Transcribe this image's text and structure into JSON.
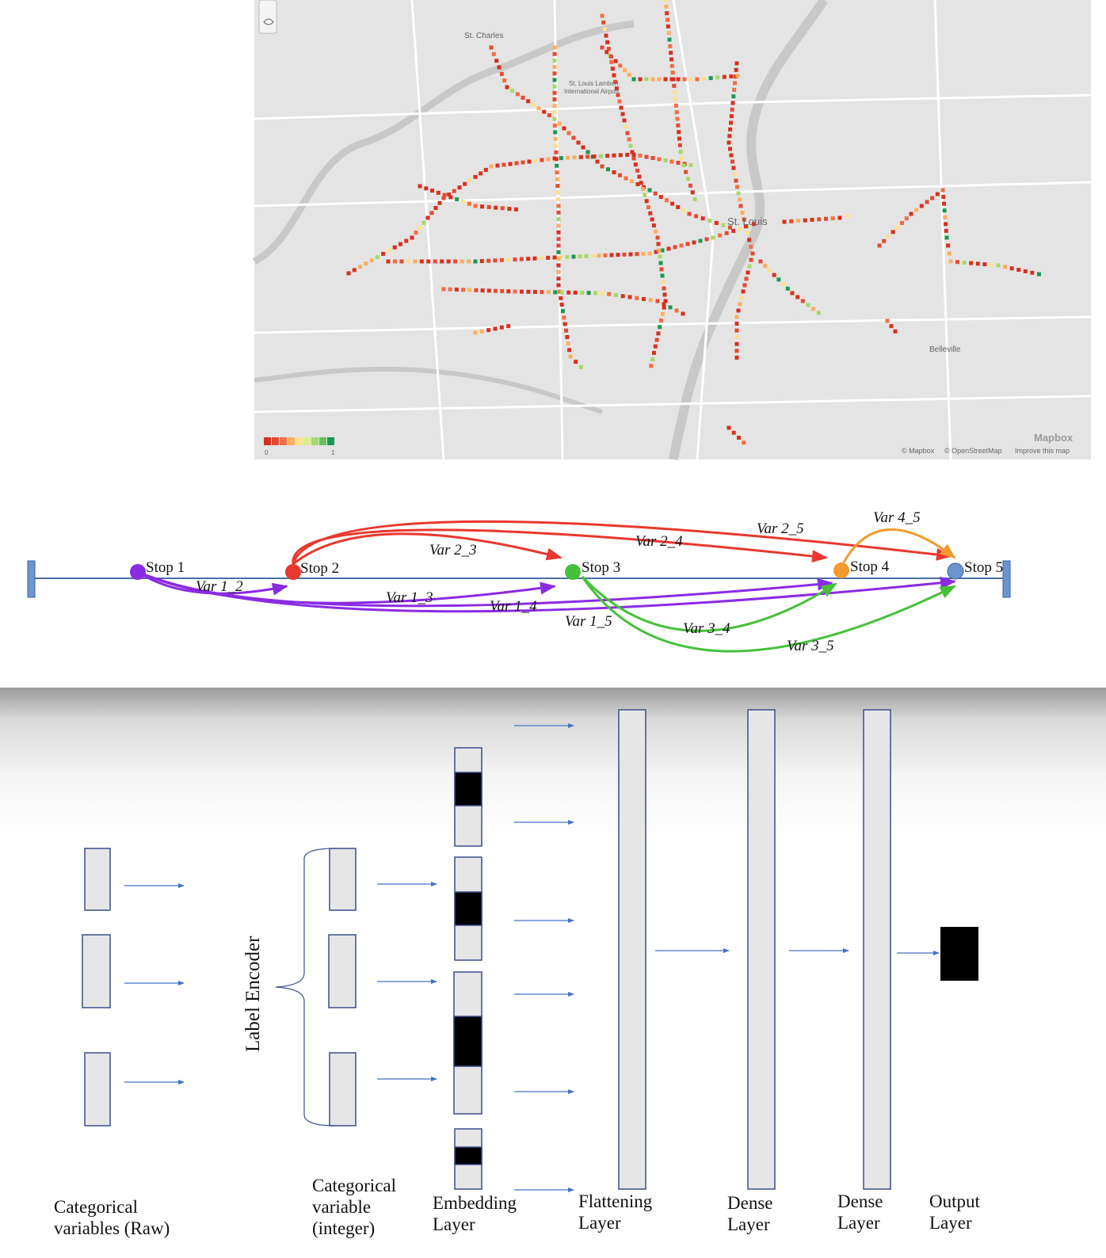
{
  "map": {
    "places": {
      "st_charles": "St. Charles",
      "airport_line1": "St. Louis Lambert",
      "airport_line2": "International Airport",
      "st_louis": "St. Louis",
      "belleville": "Belleville"
    },
    "legend": {
      "min": "0",
      "max": "1"
    },
    "attribution": {
      "logo": "Mapbox",
      "copy1": "© Mapbox",
      "copy2": "© OpenStreetMap",
      "improve": "Improve this map"
    },
    "colors": {
      "background": "#e4e4e4",
      "road": "#ffffff",
      "river": "#c9c9c9",
      "scale": [
        "#d7301f",
        "#e34a33",
        "#f46d43",
        "#fdae61",
        "#fee08b",
        "#d9ef8b",
        "#a6d96a",
        "#66bd63",
        "#1a9850"
      ]
    }
  },
  "route": {
    "stops": [
      {
        "label": "Stop 1",
        "color": "#8a2be2"
      },
      {
        "label": "Stop 2",
        "color": "#e8382f"
      },
      {
        "label": "Stop 3",
        "color": "#46c03a"
      },
      {
        "label": "Stop 4",
        "color": "#f29a2e"
      },
      {
        "label": "Stop 5",
        "color": "#6c95d0"
      }
    ],
    "arcs": {
      "v12": "Var 1_2",
      "v13": "Var 1_3",
      "v14": "Var 1_4",
      "v15": "Var 1_5",
      "v23": "Var 2_3",
      "v24": "Var 2_4",
      "v25": "Var 2_5",
      "v34": "Var 3_4",
      "v35": "Var 3_5",
      "v45": "Var 4_5"
    },
    "line_color": "#4a6fa5"
  },
  "network": {
    "rotated_label": "Label Encoder",
    "captions": {
      "raw": "Categorical\nvariables (Raw)",
      "integer": "Categorical\nvariable\n(integer)",
      "embedding": "Embedding\nLayer",
      "flattening": "Flattening\nLayer",
      "dense1": "Dense\nLayer",
      "dense2": "Dense\nLayer",
      "output": "Output\nLayer"
    },
    "colors": {
      "box_fill": "#e6e6e6",
      "box_stroke": "#3a4f8a",
      "arrow": "#4472c4",
      "filled": "#000000"
    }
  }
}
